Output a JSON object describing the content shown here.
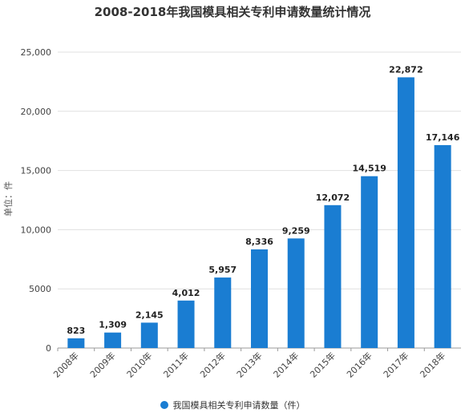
{
  "chart_data": {
    "type": "bar",
    "title": "2008-2018年我国模具相关专利申请数量统计情况",
    "ylabel": "单位：件",
    "xlabel": "",
    "categories": [
      "2008年",
      "2009年",
      "2010年",
      "2011年",
      "2012年",
      "2013年",
      "2014年",
      "2015年",
      "2016年",
      "2017年",
      "2018年"
    ],
    "series": [
      {
        "name": "我国模具相关专利申请数量（件）",
        "values": [
          823,
          1309,
          2145,
          4012,
          5957,
          8336,
          9259,
          12072,
          14519,
          22872,
          17146
        ],
        "labels": [
          "823",
          "1,309",
          "2,145",
          "4,012",
          "5,957",
          "8,336",
          "9,259",
          "12,072",
          "14,519",
          "22,872",
          "17,146"
        ]
      }
    ],
    "ylim": [
      0,
      25000
    ],
    "yticks": [
      0,
      5000,
      10000,
      15000,
      20000,
      25000
    ],
    "ytick_labels": [
      "0",
      "5000",
      "10,000",
      "15,000",
      "20,000",
      "25,000"
    ],
    "grid": true,
    "legend_position": "bottom-center",
    "bar_color": "#1a7dd2"
  }
}
